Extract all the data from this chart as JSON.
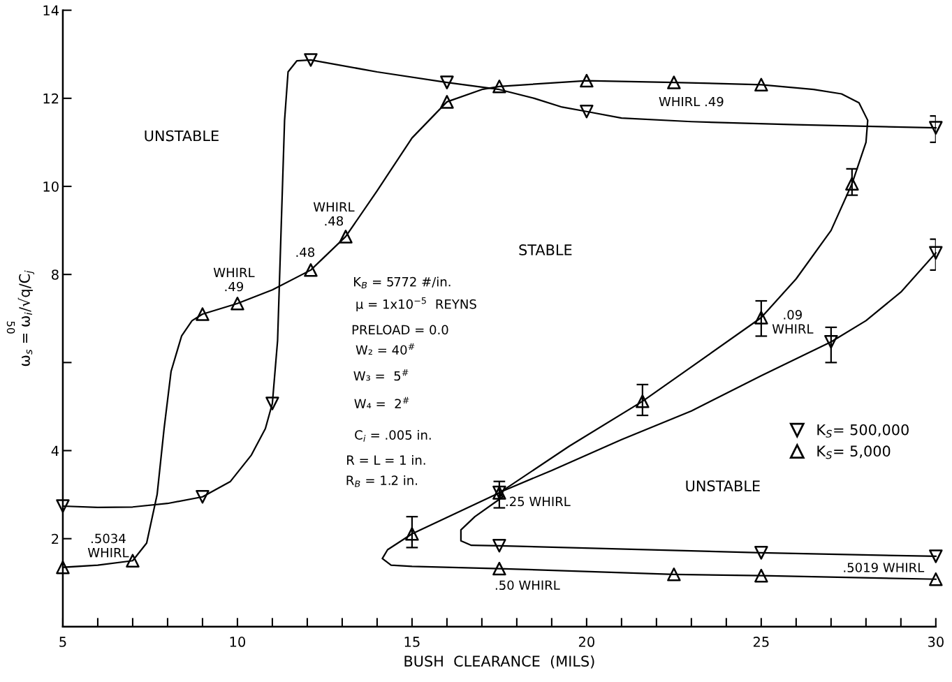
{
  "chart_data": {
    "type": "line",
    "xlabel": "BUSH  CLEARANCE  (MILS)",
    "ylabel": "ω$_{s}$ = ω$_{i}$/√q/C$_{j}$",
    "xlim": [
      5,
      30
    ],
    "ylim": [
      0,
      14
    ],
    "xticks": [
      5,
      {
        "value": 6,
        "label": null
      },
      {
        "value": 7,
        "label": null
      },
      {
        "value": 8,
        "label": null
      },
      {
        "value": 9,
        "label": null
      },
      10,
      {
        "value": 11,
        "label": null
      },
      {
        "value": 12,
        "label": null
      },
      {
        "value": 13,
        "label": null
      },
      {
        "value": 14,
        "label": null
      },
      15,
      {
        "value": 16,
        "label": null
      },
      {
        "value": 17,
        "label": null
      },
      {
        "value": 18,
        "label": null
      },
      {
        "value": 19,
        "label": null
      },
      20,
      {
        "value": 21,
        "label": null
      },
      {
        "value": 22,
        "label": null
      },
      {
        "value": 23,
        "label": null
      },
      {
        "value": 24,
        "label": null
      },
      25,
      {
        "value": 26,
        "label": null
      },
      {
        "value": 27,
        "label": null
      },
      {
        "value": 28,
        "label": null
      },
      {
        "value": 29,
        "label": null
      },
      30
    ],
    "yticks": [
      2,
      4,
      {
        "value": 6,
        "label": null
      },
      8,
      10,
      12,
      14
    ],
    "grid": false,
    "legend": "right",
    "series": [
      {
        "color": "#000000",
        "marker": "none",
        "line_style": "solid",
        "x": [
          5,
          6,
          7,
          8,
          9,
          9.8,
          10.4,
          10.8,
          11,
          11.15,
          11.25,
          11.35,
          11.45,
          11.7,
          12.1,
          14,
          16,
          17.5,
          18.5,
          19.3,
          20,
          21,
          23,
          26,
          30
        ],
        "values": [
          2.74,
          2.71,
          2.72,
          2.8,
          2.95,
          3.3,
          3.9,
          4.5,
          5.07,
          6.5,
          9,
          11.5,
          12.6,
          12.85,
          12.87,
          12.6,
          12.36,
          12.2,
          12.0,
          11.8,
          11.7,
          11.55,
          11.47,
          11.4,
          11.33
        ]
      },
      {
        "color": "#000000",
        "marker": "none",
        "line_style": "solid",
        "x": [
          30,
          29,
          28,
          27,
          25,
          23,
          21,
          19,
          17.5,
          17.6,
          16.8,
          16.4,
          16.4,
          16.7,
          17.5,
          25,
          30
        ],
        "values": [
          8.49,
          7.6,
          6.95,
          6.47,
          5.7,
          4.9,
          4.25,
          3.55,
          3.05,
          2.95,
          2.5,
          2.2,
          1.95,
          1.85,
          1.84,
          1.68,
          1.6
        ]
      },
      {
        "color": "#000000",
        "marker": "none",
        "line_style": "solid",
        "x": [
          5,
          6,
          7,
          7.4,
          7.7,
          7.9,
          8.1,
          8.4,
          8.7,
          9,
          10,
          11,
          12.1,
          13.1,
          14,
          15,
          16,
          17,
          17.5,
          20,
          22.5,
          25,
          26.5,
          27.3,
          27.8,
          28.05,
          28.0,
          27.6,
          27,
          26,
          25,
          23,
          21.6,
          19.5,
          17.5,
          15,
          14.3,
          14.15,
          14.4,
          15,
          17.5,
          22.5,
          25,
          30
        ],
        "values": [
          1.35,
          1.4,
          1.5,
          1.9,
          3,
          4.5,
          5.8,
          6.6,
          6.95,
          7.1,
          7.34,
          7.65,
          8.1,
          8.86,
          9.9,
          11.1,
          11.92,
          12.2,
          12.27,
          12.4,
          12.36,
          12.31,
          12.2,
          12.1,
          11.9,
          11.5,
          11.0,
          10.06,
          9.0,
          7.9,
          7.02,
          5.9,
          5.12,
          4.1,
          3.04,
          2.11,
          1.75,
          1.55,
          1.4,
          1.37,
          1.32,
          1.19,
          1.16,
          1.08
        ]
      },
      {
        "type": "scatter",
        "name": "K$_{S}$= 500,000",
        "color": "#000000",
        "marker": "triangle_down",
        "x": [
          5,
          9,
          11,
          12.1,
          16,
          20,
          30,
          30,
          27,
          17.5,
          17.5,
          25,
          30
        ],
        "values": [
          2.74,
          2.95,
          5.07,
          12.87,
          12.36,
          11.7,
          11.33,
          8.49,
          6.47,
          3.05,
          1.84,
          1.68,
          1.6
        ],
        "errors": [
          null,
          null,
          null,
          null,
          null,
          null,
          [
            11.0,
            11.6
          ],
          [
            8.1,
            8.8
          ],
          [
            6.0,
            6.8
          ],
          null,
          null,
          null,
          null
        ]
      },
      {
        "type": "scatter",
        "name": "K$_{S}$= 5,000",
        "color": "#000000",
        "marker": "triangle",
        "x": [
          5,
          7,
          9,
          10,
          12.1,
          13.1,
          16,
          17.5,
          20,
          22.5,
          25,
          27.6,
          25,
          21.6,
          17.5,
          15,
          17.5,
          22.5,
          25,
          30
        ],
        "values": [
          1.35,
          1.5,
          7.1,
          7.34,
          8.1,
          8.86,
          11.92,
          12.27,
          12.4,
          12.36,
          12.31,
          10.06,
          7.02,
          5.12,
          3.04,
          2.11,
          1.32,
          1.19,
          1.16,
          1.08
        ],
        "errors": [
          null,
          null,
          null,
          null,
          null,
          null,
          null,
          null,
          null,
          null,
          null,
          [
            9.8,
            10.4
          ],
          [
            6.6,
            7.4
          ],
          [
            4.8,
            5.5
          ],
          [
            2.7,
            3.3
          ],
          [
            1.8,
            2.5
          ],
          null,
          null,
          null,
          null
        ]
      }
    ],
    "annotations": [
      "UNSTABLE",
      "STABLE",
      "UNSTABLE",
      "WHIRL .49",
      "WHIRL\n.49",
      ".48",
      "WHIRL\n.48",
      ".5034\nWHIRL",
      ".09\nWHIRL",
      ".25 WHIRL",
      ".50 WHIRL",
      ".5019 WHIRL",
      "K$_{B}$ = 5772 #/in.",
      "μ = 1x10$^{−5}$  REYNS",
      "PRELOAD = 0.0",
      "W₂ = 40$^{#}$",
      "W₃ =  5$^{#}$",
      "W₄ =  2$^{#}$",
      "C$_{i}$ = .005 in.",
      "R = L = 1 in.",
      "R$_{B}$ = 1.2 in.",
      "50"
    ]
  }
}
